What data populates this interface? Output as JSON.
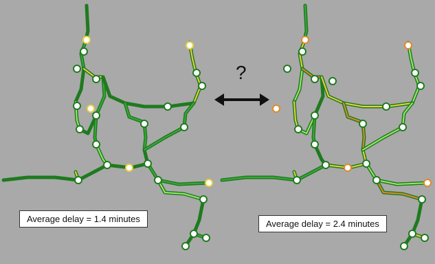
{
  "question": "?",
  "left_panel": {
    "delay_label": "Average delay = 1.4 minutes"
  },
  "right_panel": {
    "delay_label": "Average delay = 2.4 minutes"
  },
  "colors": {
    "background": "#a9a9a9",
    "track_dark": "#1f7a1f",
    "track_mid": "#39a839",
    "track_light": "#9be86a",
    "delay_yellow": "#e8d23a",
    "delay_orange": "#e08a2a",
    "delay_red": "#c0392b",
    "station_fill": "#ffffff",
    "arrow": "#111111"
  }
}
